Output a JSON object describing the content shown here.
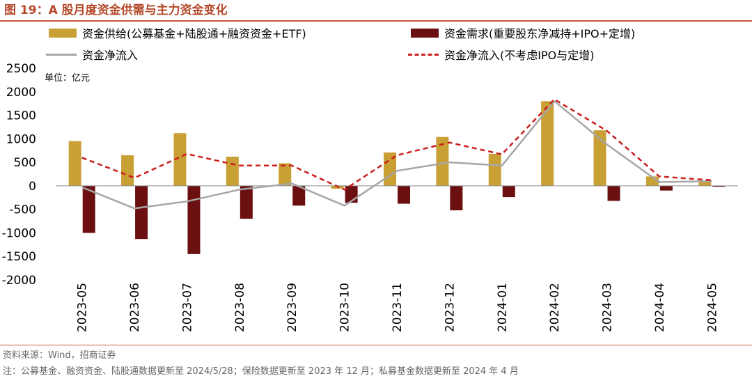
{
  "figure": {
    "title": "图 19：A 股月度资金供需与主力资金变化",
    "unit": "单位：亿元",
    "source": "资料来源：Wind，招商证券",
    "note": "注：公募基金、融资资金、陆股通数据更新至 2024/5/28；保险数据更新至 2023 年 12 月；私募基金数据更新至 2024 年 4 月"
  },
  "colors": {
    "supply": "#c9a034",
    "demand": "#6b0f10",
    "net": "#a6a6a6",
    "net_ex": "#cc1c1c",
    "title": "#b5492a"
  },
  "chart_data": {
    "type": "bar",
    "categories": [
      "2023-05",
      "2023-06",
      "2023-07",
      "2023-08",
      "2023-09",
      "2023-10",
      "2023-11",
      "2023-12",
      "2024-01",
      "2024-02",
      "2024-03",
      "2024-04",
      "2024-05"
    ],
    "series": [
      {
        "name": "资金供给(公募基金+陆股通+融资资金+ETF)",
        "type": "bar",
        "values": [
          950,
          650,
          1120,
          620,
          480,
          -60,
          710,
          1040,
          680,
          1800,
          1180,
          200,
          110
        ]
      },
      {
        "name": "资金需求(重要股东净减持+IPO+定增)",
        "type": "bar",
        "values": [
          -1000,
          -1130,
          -1450,
          -700,
          -420,
          -360,
          -380,
          -520,
          -240,
          0,
          -320,
          -100,
          -20
        ]
      },
      {
        "name": "资金净流入",
        "type": "line",
        "values": [
          -30,
          -480,
          -330,
          -80,
          50,
          -420,
          320,
          500,
          430,
          1800,
          880,
          80,
          100
        ]
      },
      {
        "name": "资金净流入(不考虑IPO与定增)",
        "type": "line",
        "style": "dashed",
        "values": [
          600,
          170,
          680,
          430,
          430,
          -80,
          650,
          920,
          670,
          1840,
          1170,
          200,
          120
        ]
      }
    ],
    "yticks": [
      "2500",
      "2000",
      "1500",
      "1000",
      "500",
      "0",
      "-500",
      "-1000",
      "-1500",
      "-2000"
    ],
    "ylim": [
      -2000,
      2500
    ],
    "grid": false,
    "legend_position": "top"
  }
}
